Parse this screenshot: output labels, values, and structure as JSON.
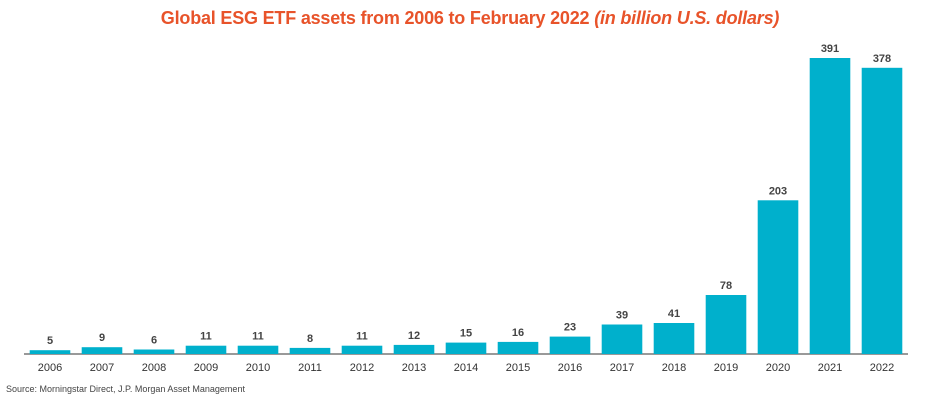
{
  "title_main": "Global ESG ETF assets from 2006 to February 2022",
  "title_unit": "(in billion U.S. dollars)",
  "source": "Source: Morningstar Direct, J.P. Morgan Asset Management",
  "colors": {
    "bar": "#00b0cc",
    "title": "#e8532a",
    "label": "#444444",
    "axis": "#333333"
  },
  "chart_data": {
    "type": "bar",
    "title": "Global ESG ETF assets from 2006 to February 2022 (in billion U.S. dollars)",
    "xlabel": "",
    "ylabel": "",
    "categories": [
      "2006",
      "2007",
      "2008",
      "2009",
      "2010",
      "2011",
      "2012",
      "2013",
      "2014",
      "2015",
      "2016",
      "2017",
      "2018",
      "2019",
      "2020",
      "2021",
      "2022"
    ],
    "values": [
      5,
      9,
      6,
      11,
      11,
      8,
      11,
      12,
      15,
      16,
      23,
      39,
      41,
      78,
      203,
      391,
      378
    ],
    "data_labels": [
      "5",
      "9",
      "6",
      "11",
      "11",
      "8",
      "11",
      "12",
      "15",
      "16",
      "23",
      "39",
      "41",
      "78",
      "203",
      "391",
      "378"
    ],
    "ylim": [
      0,
      391
    ],
    "grid": false,
    "legend": "none"
  }
}
